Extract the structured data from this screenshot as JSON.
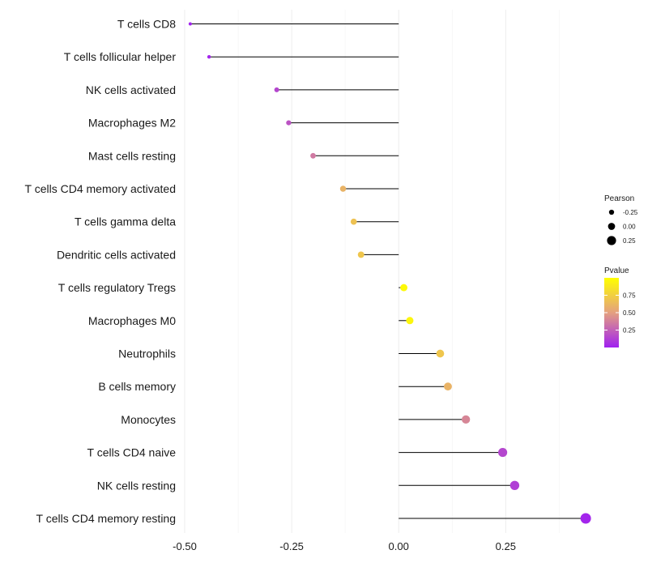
{
  "chart_data": {
    "type": "lollipop",
    "title": "",
    "xlabel": "",
    "ylabel": "",
    "xlim": [
      -0.5,
      0.45
    ],
    "x_ticks": [
      {
        "value": -0.5,
        "label": "-0.50"
      },
      {
        "value": -0.25,
        "label": "-0.25"
      },
      {
        "value": 0.0,
        "label": "0.00"
      },
      {
        "value": 0.25,
        "label": "0.25"
      }
    ],
    "grid": true,
    "categories": [
      "T cells CD8",
      "T cells follicular helper",
      "NK cells activated",
      "Macrophages M2",
      "Mast cells resting",
      "T cells CD4 memory activated",
      "T cells gamma delta",
      "Dendritic cells activated",
      "T cells regulatory  Tregs ",
      "Macrophages M0",
      "Neutrophils",
      "B cells memory",
      "Monocytes",
      "T cells CD4 naive",
      "NK cells resting",
      "T cells CD4 memory resting"
    ],
    "series": [
      {
        "name": "Pearson",
        "values": [
          -0.487,
          -0.443,
          -0.285,
          -0.257,
          -0.2,
          -0.13,
          -0.105,
          -0.088,
          0.012,
          0.026,
          0.097,
          0.115,
          0.157,
          0.243,
          0.271,
          0.437
        ]
      }
    ],
    "pvalues": [
      0.01,
      0.02,
      0.15,
      0.2,
      0.35,
      0.6,
      0.68,
      0.7,
      0.97,
      0.95,
      0.7,
      0.6,
      0.4,
      0.15,
      0.12,
      0.02
    ],
    "legend_size": {
      "title": "Pearson",
      "entries": [
        {
          "value": -0.25,
          "label": "-0.25"
        },
        {
          "value": 0.0,
          "label": "0.00"
        },
        {
          "value": 0.25,
          "label": "0.25"
        }
      ]
    },
    "legend_color": {
      "title": "Pvalue",
      "range": [
        0.0,
        1.0
      ],
      "low_color": "#a020f0",
      "mid_color": "#e4a080",
      "high_color": "#ffff00",
      "ticks": [
        {
          "value": 0.25,
          "label": "0.25"
        },
        {
          "value": 0.5,
          "label": "0.50"
        },
        {
          "value": 0.75,
          "label": "0.75"
        }
      ]
    },
    "legend_position": "right"
  }
}
